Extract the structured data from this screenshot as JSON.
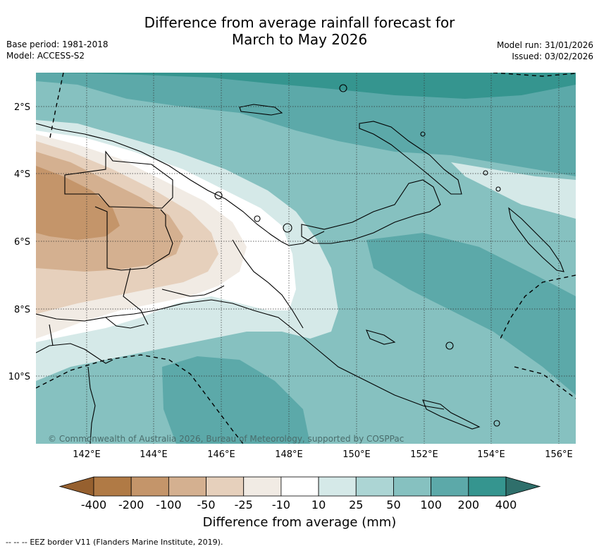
{
  "header": {
    "title_line1": "Difference from average rainfall forecast for",
    "title_line2": "March to May 2026",
    "base_period": "Base period: 1981-2018",
    "model": "Model: ACCESS-S2",
    "model_run": "Model run: 31/01/2026",
    "issued": "Issued: 03/02/2026"
  },
  "map": {
    "lon_labels": [
      "142°E",
      "144°E",
      "146°E",
      "148°E",
      "150°E",
      "152°E",
      "154°E",
      "156°E"
    ],
    "lat_labels": [
      "2°S",
      "4°S",
      "6°S",
      "8°S",
      "10°S"
    ],
    "copyright": "© Commonwealth of Australia 2026, Bureau of Meteorology, supported by COSPPac"
  },
  "colorbar": {
    "title": "Difference from average (mm)",
    "tick_labels": [
      "-400",
      "-200",
      "-100",
      "-50",
      "-25",
      "-10",
      "10",
      "25",
      "50",
      "100",
      "200",
      "400"
    ],
    "colors": [
      "#96602f",
      "#b07a45",
      "#c4956a",
      "#d4b090",
      "#e6d0bc",
      "#f1ebe4",
      "#ffffff",
      "#d5e9e8",
      "#acd5d4",
      "#86c1c0",
      "#5ca9a9",
      "#35958f",
      "#2f6f6b"
    ]
  },
  "legend": {
    "eez_label": "EEZ border V11 (Flanders Marine Institute, 2019).",
    "eez_symbol": "-- -- --"
  }
}
